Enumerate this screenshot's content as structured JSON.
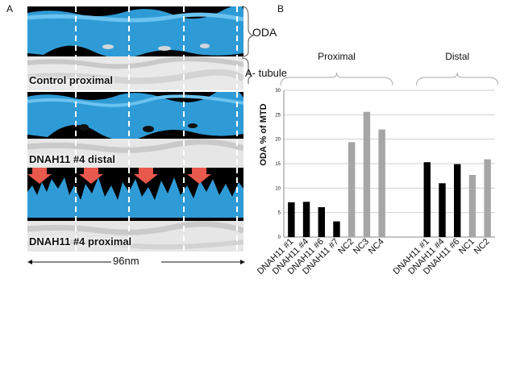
{
  "panel_a": {
    "letter": "A",
    "labels": [
      "Control proximal",
      "DNAH11 #4 distal",
      "DNAH11 #4 proximal"
    ],
    "oda_label": "ODA",
    "a_tubule_label": "A- tubule",
    "scale_bar": "96nm"
  },
  "panel_b": {
    "letter": "B",
    "group_labels": [
      "Proximal",
      "Distal"
    ]
  },
  "chart_data": {
    "type": "bar",
    "ylabel": "ODA % of MTD",
    "xlabel": "",
    "ylim": [
      0,
      30
    ],
    "yticks": [
      0,
      5,
      10,
      15,
      20,
      25,
      30
    ],
    "grid": true,
    "groups": [
      {
        "name": "Proximal",
        "categories": [
          "DNAH11 #1",
          "DNAH11 #4",
          "DNAH11 #6",
          "DNAH11 #7",
          "NC2",
          "NC3",
          "NC4"
        ],
        "values": [
          7.1,
          7.2,
          6.1,
          3.2,
          19.4,
          25.6,
          22.0
        ],
        "colors": [
          "#000000",
          "#000000",
          "#000000",
          "#000000",
          "#a6a6a6",
          "#a6a6a6",
          "#a6a6a6"
        ]
      },
      {
        "name": "Distal",
        "categories": [
          "DNAH11 #1",
          "DNAH11 #4",
          "DNAH11 #6",
          "NC1",
          "NC2"
        ],
        "values": [
          15.3,
          11.0,
          14.9,
          12.7,
          15.9
        ],
        "colors": [
          "#000000",
          "#000000",
          "#000000",
          "#a6a6a6",
          "#a6a6a6"
        ]
      }
    ]
  }
}
